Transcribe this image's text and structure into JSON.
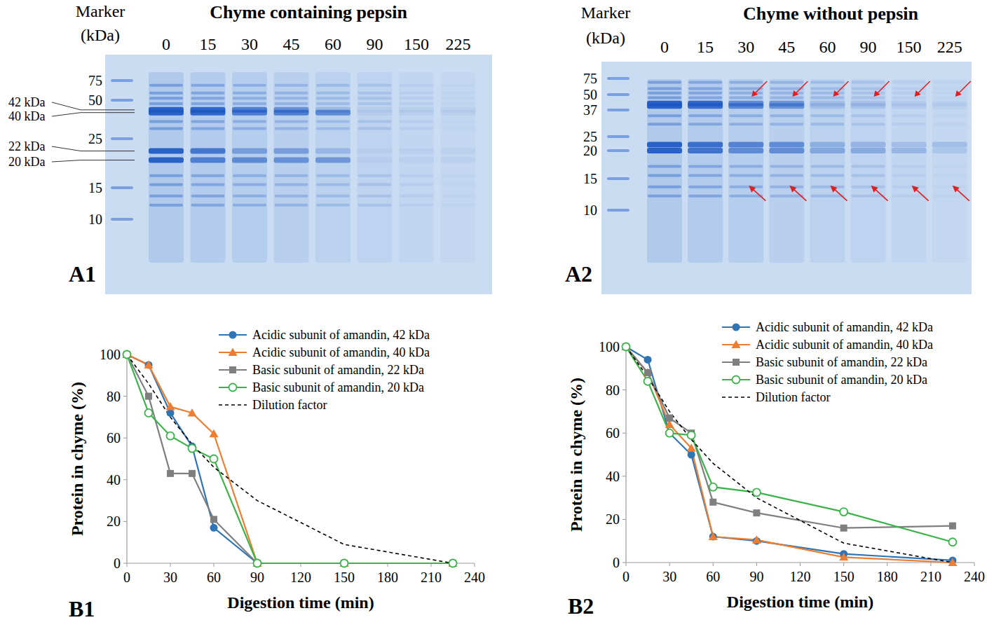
{
  "gels": [
    {
      "panel": "A1",
      "title": "Chyme containing pepsin",
      "marker_title": "Marker",
      "marker_unit": "(kDa)",
      "lanes": [
        "0",
        "15",
        "30",
        "45",
        "60",
        "90",
        "150",
        "225"
      ],
      "marker_sizes": [
        75,
        50,
        25,
        15,
        10
      ],
      "band_labels": [
        "42 kDa",
        "40 kDa",
        "22 kDa",
        "20 kDa"
      ]
    },
    {
      "panel": "A2",
      "title": "Chyme without pepsin",
      "marker_title": "Marker",
      "marker_unit": "(kDa)",
      "lanes": [
        "0",
        "15",
        "30",
        "45",
        "60",
        "90",
        "150",
        "225"
      ],
      "marker_sizes": [
        75,
        50,
        37,
        25,
        20,
        15,
        10
      ]
    }
  ],
  "chart_data": [
    {
      "type": "line",
      "panel": "B1",
      "x_label": "Digestion time (min)",
      "y_label": "Protein in chyme (%)",
      "x": [
        0,
        15,
        30,
        45,
        60,
        90,
        150,
        225
      ],
      "xlim": [
        0,
        240
      ],
      "xticks": [
        0,
        30,
        60,
        90,
        120,
        150,
        180,
        210,
        240
      ],
      "ylim": [
        0,
        100
      ],
      "yticks": [
        0,
        20,
        40,
        60,
        80,
        100
      ],
      "grid": false,
      "legend": "upper right",
      "series": [
        {
          "name": "Acidic subunit of amandin, 42 kDa",
          "color": "#2e75b6",
          "marker": "circle",
          "line_style": "solid",
          "values": [
            100,
            95,
            72,
            56,
            17,
            0,
            0,
            0
          ]
        },
        {
          "name": "Acidic subunit of amandin, 40 kDa",
          "color": "#ed7d31",
          "marker": "triangle",
          "line_style": "solid",
          "values": [
            100,
            95,
            75,
            72,
            62,
            0,
            0,
            0
          ]
        },
        {
          "name": "Basic subunit of amandin, 22 kDa",
          "color": "#7f7f7f",
          "marker": "square",
          "line_style": "solid",
          "values": [
            100,
            80,
            43,
            43,
            21,
            0,
            0,
            0
          ]
        },
        {
          "name": "Basic subunit of amandin, 20 kDa",
          "color": "#3bb34a",
          "marker": "circle-open",
          "line_style": "solid",
          "values": [
            100,
            72,
            61,
            55,
            50,
            0,
            0,
            0
          ]
        },
        {
          "name": "Dilution factor",
          "color": "#000000",
          "marker": "none",
          "line_style": "dashed",
          "values": [
            100,
            86,
            70,
            57,
            46,
            30,
            9,
            0
          ]
        }
      ]
    },
    {
      "type": "line",
      "panel": "B2",
      "x_label": "Digestion time (min)",
      "y_label": "Protein in chyme (%)",
      "x": [
        0,
        15,
        30,
        45,
        60,
        90,
        150,
        225
      ],
      "xlim": [
        0,
        240
      ],
      "xticks": [
        0,
        30,
        60,
        90,
        120,
        150,
        180,
        210,
        240
      ],
      "ylim": [
        0,
        100
      ],
      "yticks": [
        0,
        20,
        40,
        60,
        80,
        100
      ],
      "grid": false,
      "legend": "upper right",
      "series": [
        {
          "name": "Acidic subunit of amandin, 42 kDa",
          "color": "#2e75b6",
          "marker": "circle",
          "line_style": "solid",
          "values": [
            100,
            94,
            60,
            50,
            12,
            10,
            4,
            1
          ]
        },
        {
          "name": "Acidic subunit of amandin, 40 kDa",
          "color": "#ed7d31",
          "marker": "triangle",
          "line_style": "solid",
          "values": [
            100,
            88,
            64,
            53,
            12,
            10.5,
            2.5,
            0
          ]
        },
        {
          "name": "Basic subunit of amandin, 22 kDa",
          "color": "#7f7f7f",
          "marker": "square",
          "line_style": "solid",
          "values": [
            100,
            88,
            67,
            60,
            28,
            23,
            16,
            17
          ]
        },
        {
          "name": "Basic subunit of amandin, 20 kDa",
          "color": "#3bb34a",
          "marker": "circle-open",
          "line_style": "solid",
          "values": [
            100,
            84,
            60,
            59,
            35,
            32.5,
            23.5,
            9.5
          ]
        },
        {
          "name": "Dilution factor",
          "color": "#000000",
          "marker": "none",
          "line_style": "dashed",
          "values": [
            100,
            86,
            70,
            57,
            46,
            30,
            9,
            0
          ]
        }
      ]
    }
  ]
}
